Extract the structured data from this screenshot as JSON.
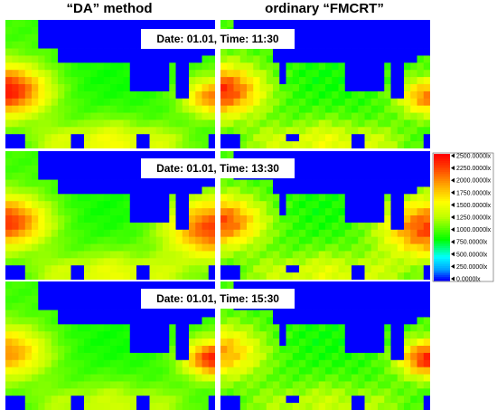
{
  "columns": [
    "“DA” method",
    "ordinary “FMCRT”"
  ],
  "rows": [
    {
      "label": "Date: 01.01, Time: 11:30"
    },
    {
      "label": "Date: 01.01, Time: 13:30"
    },
    {
      "label": "Date: 01.01, Time: 15:30"
    }
  ],
  "chart_data": {
    "type": "heatmap",
    "title": "",
    "grid": [
      32,
      18
    ],
    "colorbar": {
      "range": [
        0,
        2500
      ],
      "ticks": [
        "2500.0000lx",
        "2250.0000lx",
        "2000.0000lx",
        "1750.0000lx",
        "1500.0000lx",
        "1250.0000lx",
        "1000.0000lx",
        "750.0000lx",
        "500.0000lx",
        "250.0000lx",
        "0.0000lx"
      ]
    },
    "maps": [
      {
        "row": 0,
        "column": 0,
        "time": "11:30"
      },
      {
        "row": 0,
        "column": 1,
        "time": "11:30"
      },
      {
        "row": 1,
        "column": 0,
        "time": "13:30"
      },
      {
        "row": 1,
        "column": 1,
        "time": "13:30"
      },
      {
        "row": 2,
        "column": 0,
        "time": "15:30"
      },
      {
        "row": 2,
        "column": 1,
        "time": "15:30"
      }
    ]
  }
}
